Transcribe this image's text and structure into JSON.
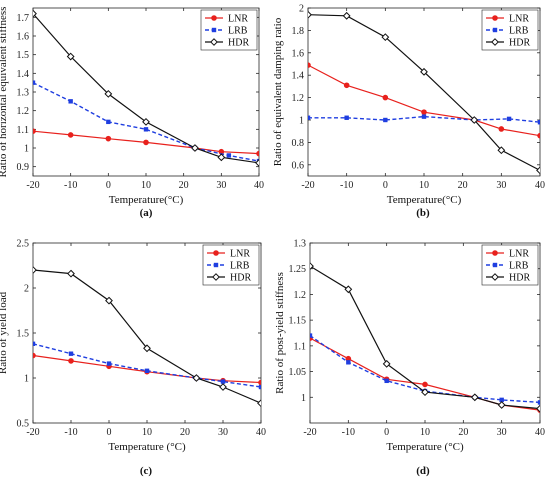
{
  "chart_data": [
    {
      "panel_label": "(a)",
      "type": "line",
      "xlabel": "Temperature(°C)",
      "ylabel": "Ratio of horizontal equivalent stiffness",
      "xlim": [
        -20,
        40
      ],
      "ylim": [
        0.85,
        1.75
      ],
      "xticks": [
        "-20",
        "-10",
        "0",
        "10",
        "20",
        "30",
        "40"
      ],
      "yticks": [
        "0.9",
        "1",
        "1.1",
        "1.2",
        "1.3",
        "1.4",
        "1.5",
        "1.6",
        "1.7"
      ],
      "grid": false,
      "legend_position": "top-right",
      "series": [
        {
          "name": "LNR",
          "color": "#e8211d",
          "style": "solid",
          "marker": "circle",
          "x": [
            -20,
            -10,
            0,
            10,
            23,
            30,
            40
          ],
          "y": [
            1.09,
            1.07,
            1.05,
            1.03,
            1.0,
            0.98,
            0.97
          ]
        },
        {
          "name": "LRB",
          "color": "#1f3ee0",
          "style": "dashed",
          "marker": "square",
          "x": [
            -20,
            -10,
            0,
            10,
            23,
            32,
            40
          ],
          "y": [
            1.35,
            1.25,
            1.14,
            1.1,
            1.0,
            0.96,
            0.93
          ]
        },
        {
          "name": "HDR",
          "color": "#111111",
          "style": "solid",
          "marker": "diamond",
          "x": [
            -20,
            -10,
            0,
            10,
            23,
            30,
            40
          ],
          "y": [
            1.72,
            1.49,
            1.29,
            1.14,
            1.0,
            0.95,
            0.92
          ]
        }
      ]
    },
    {
      "panel_label": "(b)",
      "type": "line",
      "xlabel": "Temperature(°C)",
      "ylabel": "Ratio of equivalent damping ratio",
      "xlim": [
        -20,
        40
      ],
      "ylim": [
        0.5,
        2.0
      ],
      "xticks": [
        "-20",
        "-10",
        "0",
        "10",
        "20",
        "30",
        "40"
      ],
      "yticks": [
        "0.6",
        "0.8",
        "1",
        "1.2",
        "1.4",
        "1.6",
        "1.8",
        "2"
      ],
      "grid": false,
      "legend_position": "top-right",
      "series": [
        {
          "name": "LNR",
          "color": "#e8211d",
          "style": "solid",
          "marker": "circle",
          "x": [
            -20,
            -10,
            0,
            10,
            23,
            30,
            40
          ],
          "y": [
            1.49,
            1.31,
            1.2,
            1.07,
            1.0,
            0.92,
            0.86
          ]
        },
        {
          "name": "LRB",
          "color": "#1f3ee0",
          "style": "dashed",
          "marker": "square",
          "x": [
            -20,
            -10,
            0,
            10,
            23,
            32,
            40
          ],
          "y": [
            1.02,
            1.02,
            1.0,
            1.03,
            1.0,
            1.01,
            0.98
          ]
        },
        {
          "name": "HDR",
          "color": "#111111",
          "style": "solid",
          "marker": "diamond",
          "x": [
            -20,
            -10,
            0,
            10,
            23,
            30,
            40
          ],
          "y": [
            1.94,
            1.93,
            1.74,
            1.43,
            1.0,
            0.73,
            0.55
          ]
        }
      ]
    },
    {
      "panel_label": "(c)",
      "type": "line",
      "xlabel": "Temperature (°C)",
      "ylabel": "Ratio of yield load",
      "xlim": [
        -20,
        40
      ],
      "ylim": [
        0.5,
        2.5
      ],
      "xticks": [
        "-20",
        "-10",
        "0",
        "10",
        "20",
        "30",
        "40"
      ],
      "yticks": [
        "0.5",
        "1",
        "1.5",
        "2",
        "2.5"
      ],
      "grid": false,
      "legend_position": "top-right",
      "series": [
        {
          "name": "LNR",
          "color": "#e8211d",
          "style": "solid",
          "marker": "circle",
          "x": [
            -20,
            -10,
            0,
            10,
            23,
            30,
            40
          ],
          "y": [
            1.25,
            1.19,
            1.13,
            1.07,
            1.0,
            0.97,
            0.95
          ]
        },
        {
          "name": "LRB",
          "color": "#1f3ee0",
          "style": "dashed",
          "marker": "square",
          "x": [
            -20,
            -10,
            0,
            10,
            23,
            30,
            40
          ],
          "y": [
            1.38,
            1.27,
            1.16,
            1.08,
            1.0,
            0.96,
            0.9
          ]
        },
        {
          "name": "HDR",
          "color": "#111111",
          "style": "solid",
          "marker": "diamond",
          "x": [
            -20,
            -10,
            0,
            10,
            23,
            30,
            40
          ],
          "y": [
            2.2,
            2.16,
            1.86,
            1.33,
            1.0,
            0.9,
            0.72
          ]
        }
      ]
    },
    {
      "panel_label": "(d)",
      "type": "line",
      "xlabel": "Temperature (°C)",
      "ylabel": "Ratio of post-yield stiffness",
      "xlim": [
        -20,
        40
      ],
      "ylim": [
        0.95,
        1.3
      ],
      "xticks": [
        "-20",
        "-10",
        "0",
        "10",
        "20",
        "30",
        "40"
      ],
      "yticks": [
        "1",
        "1.05",
        "1.1",
        "1.15",
        "1.2",
        "1.25",
        "1.3"
      ],
      "grid": false,
      "legend_position": "top-right",
      "series": [
        {
          "name": "LNR",
          "color": "#e8211d",
          "style": "solid",
          "marker": "circle",
          "x": [
            -20,
            -10,
            0,
            10,
            23,
            30,
            40
          ],
          "y": [
            1.115,
            1.075,
            1.035,
            1.025,
            1.0,
            0.985,
            0.975
          ]
        },
        {
          "name": "LRB",
          "color": "#1f3ee0",
          "style": "dashed",
          "marker": "square",
          "x": [
            -20,
            -10,
            0,
            10,
            23,
            30,
            40
          ],
          "y": [
            1.12,
            1.068,
            1.032,
            1.012,
            1.0,
            0.995,
            0.99
          ]
        },
        {
          "name": "HDR",
          "color": "#111111",
          "style": "solid",
          "marker": "diamond",
          "x": [
            -20,
            -10,
            0,
            10,
            23,
            30,
            40
          ],
          "y": [
            1.255,
            1.21,
            1.065,
            1.01,
            1.0,
            0.985,
            0.978
          ]
        }
      ]
    }
  ]
}
